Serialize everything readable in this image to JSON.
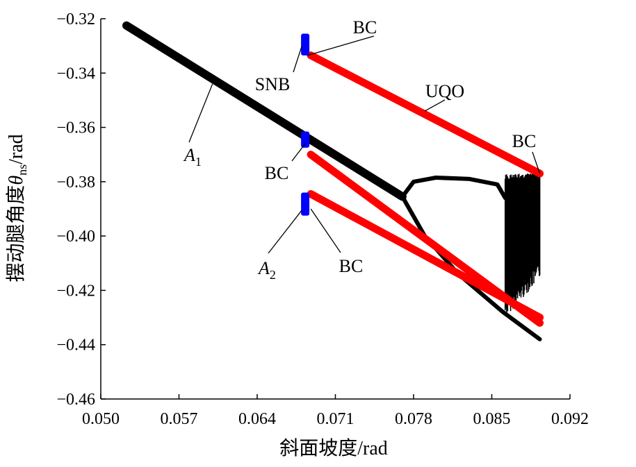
{
  "chart_data": {
    "type": "scatter",
    "title": "",
    "xlabel": "斜面坡度/rad",
    "ylabel": {
      "prefix": "摆动腿角度",
      "symbol": "θ",
      "subscript": "ns",
      "unit": "/rad"
    },
    "xlim": [
      0.05,
      0.092
    ],
    "ylim": [
      -0.46,
      -0.32
    ],
    "xticks": [
      0.05,
      0.057,
      0.064,
      0.071,
      0.078,
      0.085,
      0.092
    ],
    "xtick_labels": [
      "0.050",
      "0.057",
      "0.064",
      "0.071",
      "0.078",
      "0.085",
      "0.092"
    ],
    "yticks": [
      -0.32,
      -0.34,
      -0.36,
      -0.38,
      -0.4,
      -0.42,
      -0.44,
      -0.46
    ],
    "ytick_labels": [
      "−0.32",
      "−0.34",
      "−0.36",
      "−0.38",
      "−0.40",
      "−0.42",
      "−0.44",
      "−0.46"
    ],
    "grid": false,
    "colors": {
      "stable": "#000000",
      "unstable": "#ff0000",
      "snb": "#0000ff"
    },
    "series": [
      {
        "role": "stable-main-branch",
        "color": "#000000",
        "points": [
          [
            0.0523,
            -0.3225
          ],
          [
            0.077,
            -0.3855
          ]
        ]
      },
      {
        "role": "stable-after-period-doubling-lower",
        "color": "#000000",
        "points": [
          [
            0.077,
            -0.3855
          ],
          [
            0.079,
            -0.4
          ],
          [
            0.082,
            -0.414
          ],
          [
            0.086,
            -0.428
          ],
          [
            0.0893,
            -0.438
          ]
        ]
      },
      {
        "role": "stable-after-period-doubling-upper",
        "color": "#000000",
        "points": [
          [
            0.077,
            -0.3855
          ],
          [
            0.078,
            -0.38
          ],
          [
            0.08,
            -0.3785
          ],
          [
            0.083,
            -0.379
          ],
          [
            0.0855,
            -0.381
          ],
          [
            0.0862,
            -0.386
          ]
        ]
      },
      {
        "role": "chaotic-band",
        "color": "#000000",
        "x_range": [
          0.0862,
          0.0893
        ],
        "y_range": [
          -0.438,
          -0.377
        ]
      },
      {
        "role": "unstable-upper",
        "color": "#ff0000",
        "points": [
          [
            0.0688,
            -0.3335
          ],
          [
            0.0893,
            -0.377
          ]
        ]
      },
      {
        "role": "unstable-middle",
        "color": "#ff0000",
        "points": [
          [
            0.0688,
            -0.37
          ],
          [
            0.0893,
            -0.432
          ]
        ]
      },
      {
        "role": "unstable-lower",
        "color": "#ff0000",
        "points": [
          [
            0.0688,
            -0.3845
          ],
          [
            0.0893,
            -0.43
          ]
        ]
      },
      {
        "role": "snb-upper",
        "color": "#0000ff",
        "x": 0.0683,
        "y_range": [
          -0.3335,
          -0.3255
        ]
      },
      {
        "role": "snb-middle",
        "color": "#0000ff",
        "x": 0.0683,
        "y_range": [
          -0.3675,
          -0.3615
        ]
      },
      {
        "role": "snb-lower",
        "color": "#0000ff",
        "x": 0.0683,
        "y_range": [
          -0.3925,
          -0.384
        ]
      }
    ],
    "annotations": [
      {
        "text": "BC",
        "target": [
          0.0685,
          -0.3335
        ]
      },
      {
        "text": "SNB",
        "target": [
          0.068,
          -0.33
        ]
      },
      {
        "text": "UQO",
        "target": [
          0.079,
          -0.354
        ]
      },
      {
        "text": "BC",
        "target": [
          0.0893,
          -0.377
        ]
      },
      {
        "text": "BC",
        "target": [
          0.0683,
          -0.366
        ]
      },
      {
        "text": "BC",
        "target": [
          0.0688,
          -0.39
        ]
      },
      {
        "text": "A",
        "subscript": "1",
        "target": [
          0.06,
          -0.344
        ]
      },
      {
        "text": "A",
        "subscript": "2",
        "target": [
          0.068,
          -0.3905
        ]
      }
    ]
  }
}
